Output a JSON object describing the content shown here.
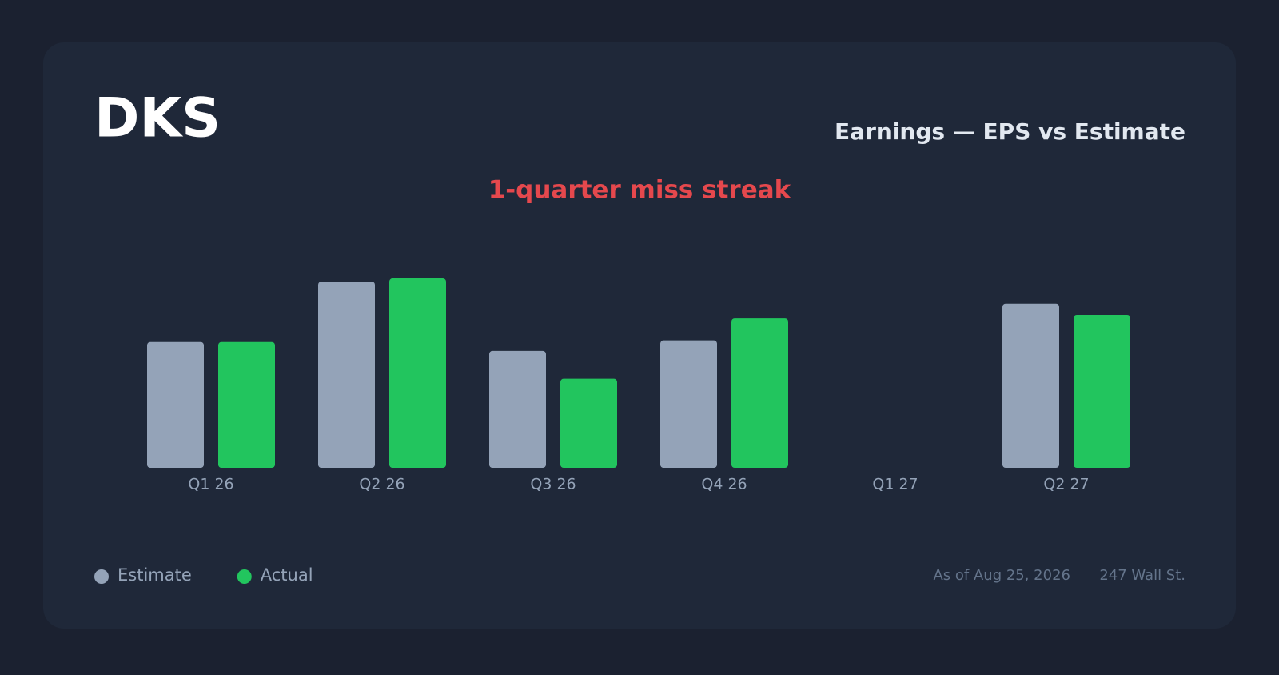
{
  "chart_data": {
    "type": "bar",
    "title": "DKS",
    "subtitle": "Earnings — EPS vs Estimate",
    "annotation": "1-quarter miss streak",
    "categories": [
      "Q1 26",
      "Q2 26",
      "Q3 26",
      "Q4 26",
      "Q1 27",
      "Q2 27"
    ],
    "series": [
      {
        "name": "Estimate",
        "color": "#94a3b8",
        "values": [
          1.54,
          2.28,
          1.43,
          1.56,
          null,
          2.01
        ]
      },
      {
        "name": "Actual",
        "color": "#22c55e",
        "values": [
          1.54,
          2.32,
          1.09,
          1.83,
          null,
          1.87
        ]
      }
    ],
    "ylim": [
      0,
      2.8
    ],
    "grid": false,
    "as_of": "As of Aug 25, 2026",
    "source": "247 Wall St."
  }
}
